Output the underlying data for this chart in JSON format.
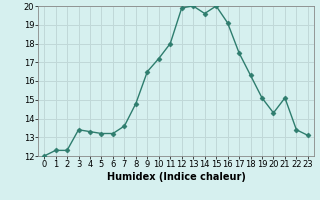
{
  "x": [
    0,
    1,
    2,
    3,
    4,
    5,
    6,
    7,
    8,
    9,
    10,
    11,
    12,
    13,
    14,
    15,
    16,
    17,
    18,
    19,
    20,
    21,
    22,
    23
  ],
  "y": [
    12.0,
    12.3,
    12.3,
    13.4,
    13.3,
    13.2,
    13.2,
    13.6,
    14.8,
    16.5,
    17.2,
    18.0,
    19.9,
    20.0,
    19.6,
    20.0,
    19.1,
    17.5,
    16.3,
    15.1,
    14.3,
    15.1,
    13.4,
    13.1
  ],
  "line_color": "#2e7d6e",
  "marker": "D",
  "marker_size": 2.5,
  "bg_color": "#d6f0ef",
  "grid_color": "#c0d8d8",
  "xlabel": "Humidex (Indice chaleur)",
  "ylim": [
    12,
    20
  ],
  "xlim": [
    -0.5,
    23.5
  ],
  "yticks": [
    12,
    13,
    14,
    15,
    16,
    17,
    18,
    19,
    20
  ],
  "xticks": [
    0,
    1,
    2,
    3,
    4,
    5,
    6,
    7,
    8,
    9,
    10,
    11,
    12,
    13,
    14,
    15,
    16,
    17,
    18,
    19,
    20,
    21,
    22,
    23
  ],
  "xlabel_fontsize": 7,
  "tick_fontsize": 6
}
